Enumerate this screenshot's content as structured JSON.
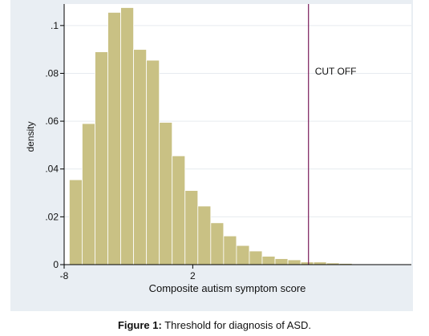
{
  "chart_data": {
    "type": "bar",
    "title": "",
    "xlabel": "Composite autism symptom score",
    "ylabel": "density",
    "xlim": [
      -8,
      19
    ],
    "ylim": [
      0,
      0.109
    ],
    "x_ticks": [
      "-8",
      "2"
    ],
    "x_tick_values": [
      -8,
      2
    ],
    "y_ticks": [
      "0",
      ".02",
      ".04",
      ".06",
      ".08",
      ".1"
    ],
    "y_tick_values": [
      0,
      0.02,
      0.04,
      0.06,
      0.08,
      0.1
    ],
    "grid": true,
    "bin_edges": [
      -7.6,
      -6.6,
      -5.6,
      -4.6,
      -3.6,
      -2.6,
      -1.6,
      -0.6,
      0.4,
      1.4,
      2.4,
      3.4,
      4.4,
      5.4,
      6.4,
      7.4,
      8.4,
      9.4,
      10.4,
      11.4,
      12.4,
      13.4,
      14.4,
      15.4,
      16.4,
      17.4,
      18.4
    ],
    "values": [
      0.0355,
      0.059,
      0.089,
      0.1055,
      0.1075,
      0.09,
      0.0855,
      0.0595,
      0.0455,
      0.031,
      0.0245,
      0.0175,
      0.012,
      0.008,
      0.0057,
      0.0035,
      0.0025,
      0.002,
      0.0011,
      0.0011,
      0.0007,
      0.0005,
      0.0003,
      0.0002,
      0.0001,
      0.0001
    ],
    "bar_color": "#c9c184",
    "bar_edge_color": "#ffffff",
    "cutoff": {
      "x": 11.0,
      "label": "CUT OFF",
      "color": "#7a1a5a"
    }
  },
  "caption": {
    "bold": "Figure 1:",
    "text": " Threshold for diagnosis of ASD."
  }
}
